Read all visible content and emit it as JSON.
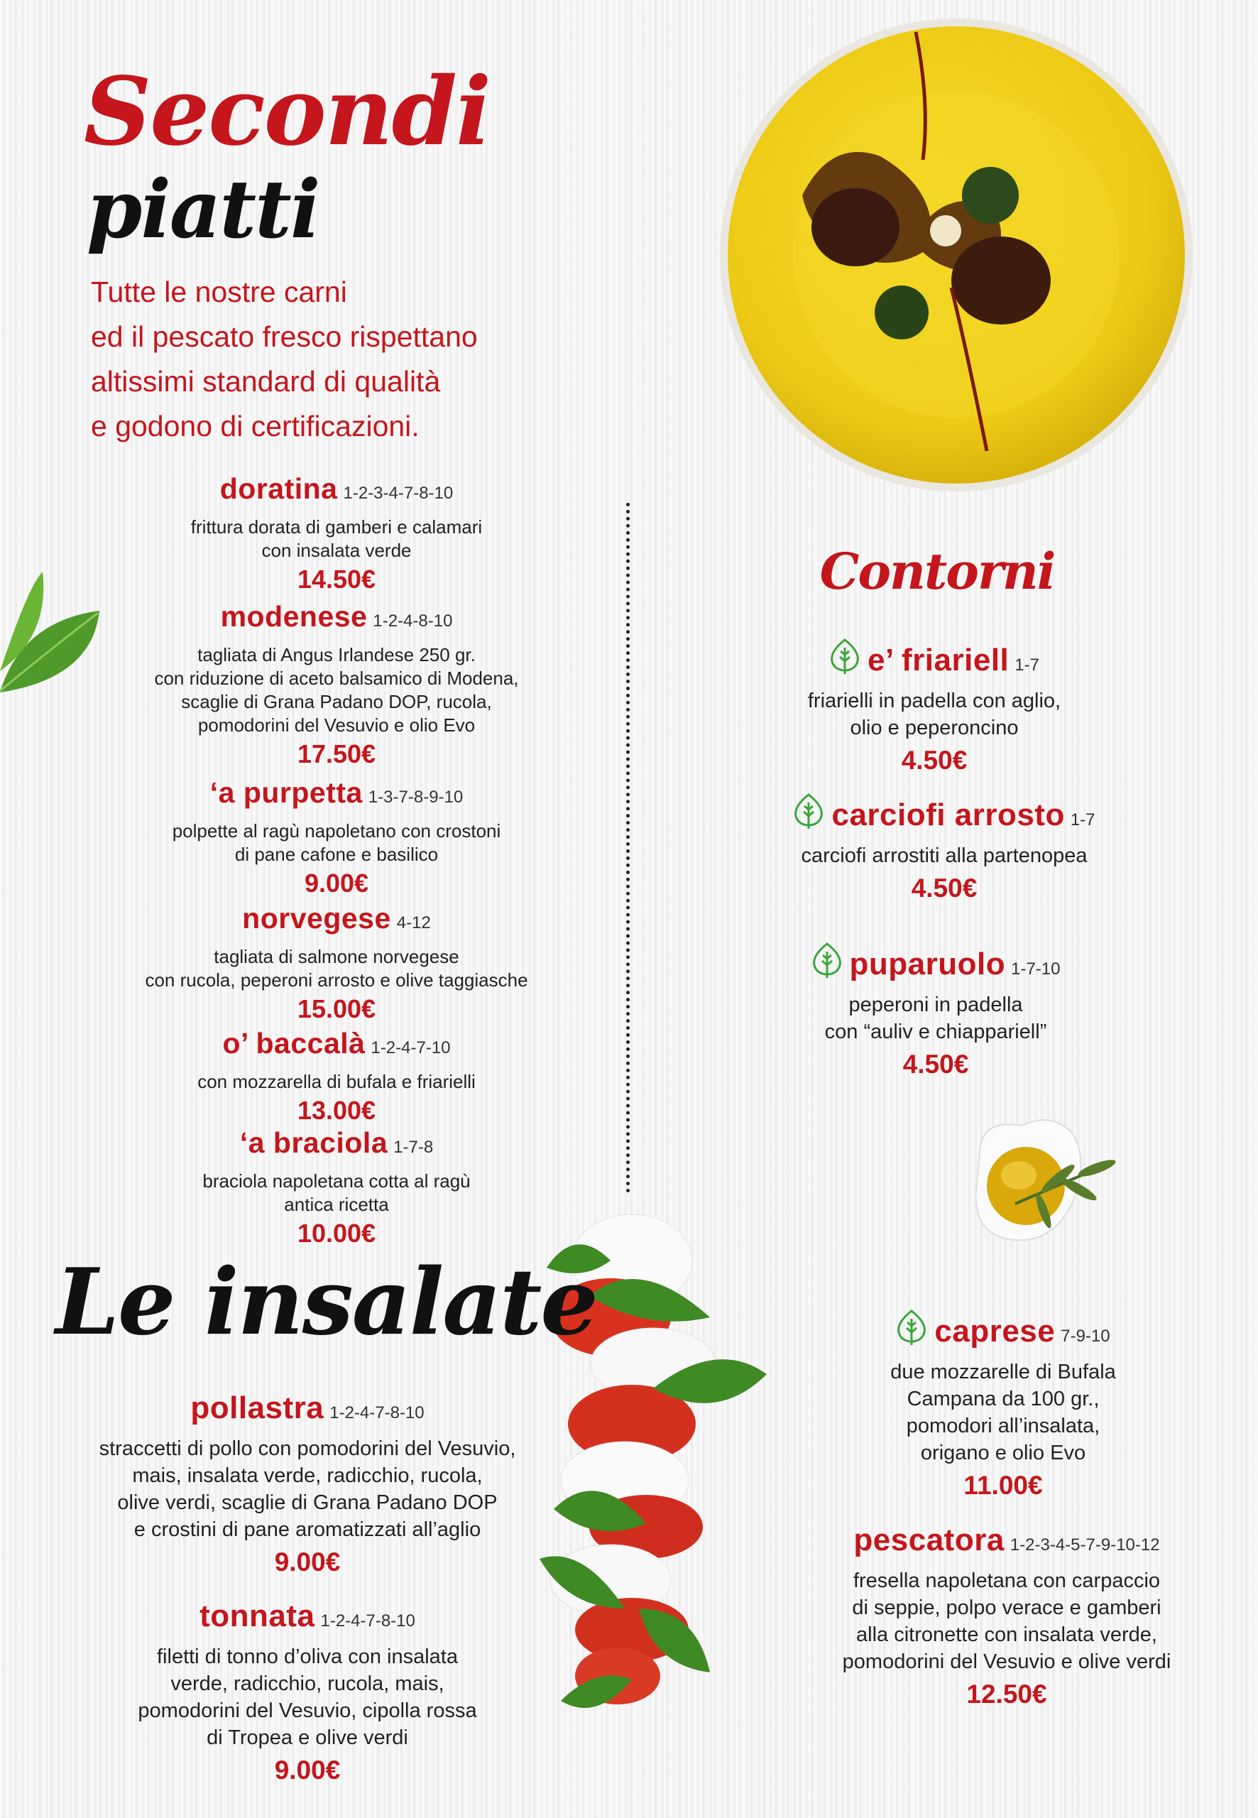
{
  "colors": {
    "accent_red": "#c4161c",
    "veg_green": "#3aa53a",
    "plate_yellow": "#f1d21c"
  },
  "secondi": {
    "title_line1": "Secondi",
    "title_line2": "piatti",
    "intro": [
      "Tutte le nostre carni",
      "ed il pescato fresco rispettano",
      "altissimi standard di qualità",
      "e godono di certificazioni."
    ],
    "items": [
      {
        "name": "doratina",
        "allergens": "1-2-3-4-7-8-10",
        "desc": [
          "frittura dorata di gamberi e calamari",
          "con insalata verde"
        ],
        "price": "14.50€"
      },
      {
        "name": "modenese",
        "allergens": "1-2-4-8-10",
        "desc": [
          "tagliata di Angus Irlandese 250 gr.",
          "con riduzione di aceto balsamico di Modena,",
          "scaglie di Grana Padano DOP, rucola,",
          "pomodorini del Vesuvio e olio Evo"
        ],
        "price": "17.50€"
      },
      {
        "name": "‘a purpetta",
        "allergens": "1-3-7-8-9-10",
        "desc": [
          "polpette al ragù napoletano con crostoni",
          "di pane cafone e basilico"
        ],
        "price": "9.00€"
      },
      {
        "name": "norvegese",
        "allergens": "4-12",
        "desc": [
          "tagliata di salmone norvegese",
          "con rucola, peperoni arrosto e olive taggiasche"
        ],
        "price": "15.00€"
      },
      {
        "name": "o’ baccalà",
        "allergens": "1-2-4-7-10",
        "desc": [
          "con mozzarella di bufala e friarielli"
        ],
        "price": "13.00€"
      },
      {
        "name": "‘a braciola",
        "allergens": "1-7-8",
        "desc": [
          "braciola napoletana cotta al ragù",
          "antica ricetta"
        ],
        "price": "10.00€"
      }
    ]
  },
  "contorni": {
    "title": "Contorni",
    "items": [
      {
        "name": "e’ friariell",
        "allergens": "1-7",
        "vegetarian": true,
        "desc": [
          "friarielli in padella con aglio,",
          "olio e peperoncino"
        ],
        "price": "4.50€"
      },
      {
        "name": "carciofi arrosto",
        "allergens": "1-7",
        "vegetarian": true,
        "desc": [
          "carciofi arrostiti alla partenopea"
        ],
        "price": "4.50€"
      },
      {
        "name": "puparuolo",
        "allergens": "1-7-10",
        "vegetarian": true,
        "desc": [
          "peperoni in padella",
          "con “auliv e chiappariell”"
        ],
        "price": "4.50€"
      }
    ]
  },
  "insalate": {
    "title": "Le insalate",
    "items": [
      {
        "name": "pollastra",
        "allergens": "1-2-4-7-8-10",
        "desc": [
          "straccetti di pollo con pomodorini del Vesuvio,",
          "mais, insalata verde, radicchio, rucola,",
          "olive verdi, scaglie di Grana Padano DOP",
          "e crostini di pane aromatizzati all’aglio"
        ],
        "price": "9.00€"
      },
      {
        "name": "tonnata",
        "allergens": "1-2-4-7-8-10",
        "desc": [
          "filetti di tonno d’oliva con insalata",
          "verde, radicchio, rucola, mais,",
          "pomodorini del Vesuvio, cipolla rossa",
          "di Tropea e olive verdi"
        ],
        "price": "9.00€"
      },
      {
        "name": "caprese",
        "allergens": "7-9-10",
        "vegetarian": true,
        "desc": [
          "due mozzarelle di Bufala",
          "Campana da 100 gr.,",
          "pomodori all’insalata,",
          "origano e olio Evo"
        ],
        "price": "11.00€"
      },
      {
        "name": "pescatora",
        "allergens": "1-2-3-4-5-7-9-10-12",
        "desc": [
          "fresella napoletana con carpaccio",
          "di seppie, polpo verace e gamberi",
          "alla citronette con insalata verde,",
          "pomodorini del Vesuvio e olive verdi"
        ],
        "price": "12.50€"
      }
    ]
  },
  "icons": {
    "vegetarian": "leaf-icon"
  }
}
